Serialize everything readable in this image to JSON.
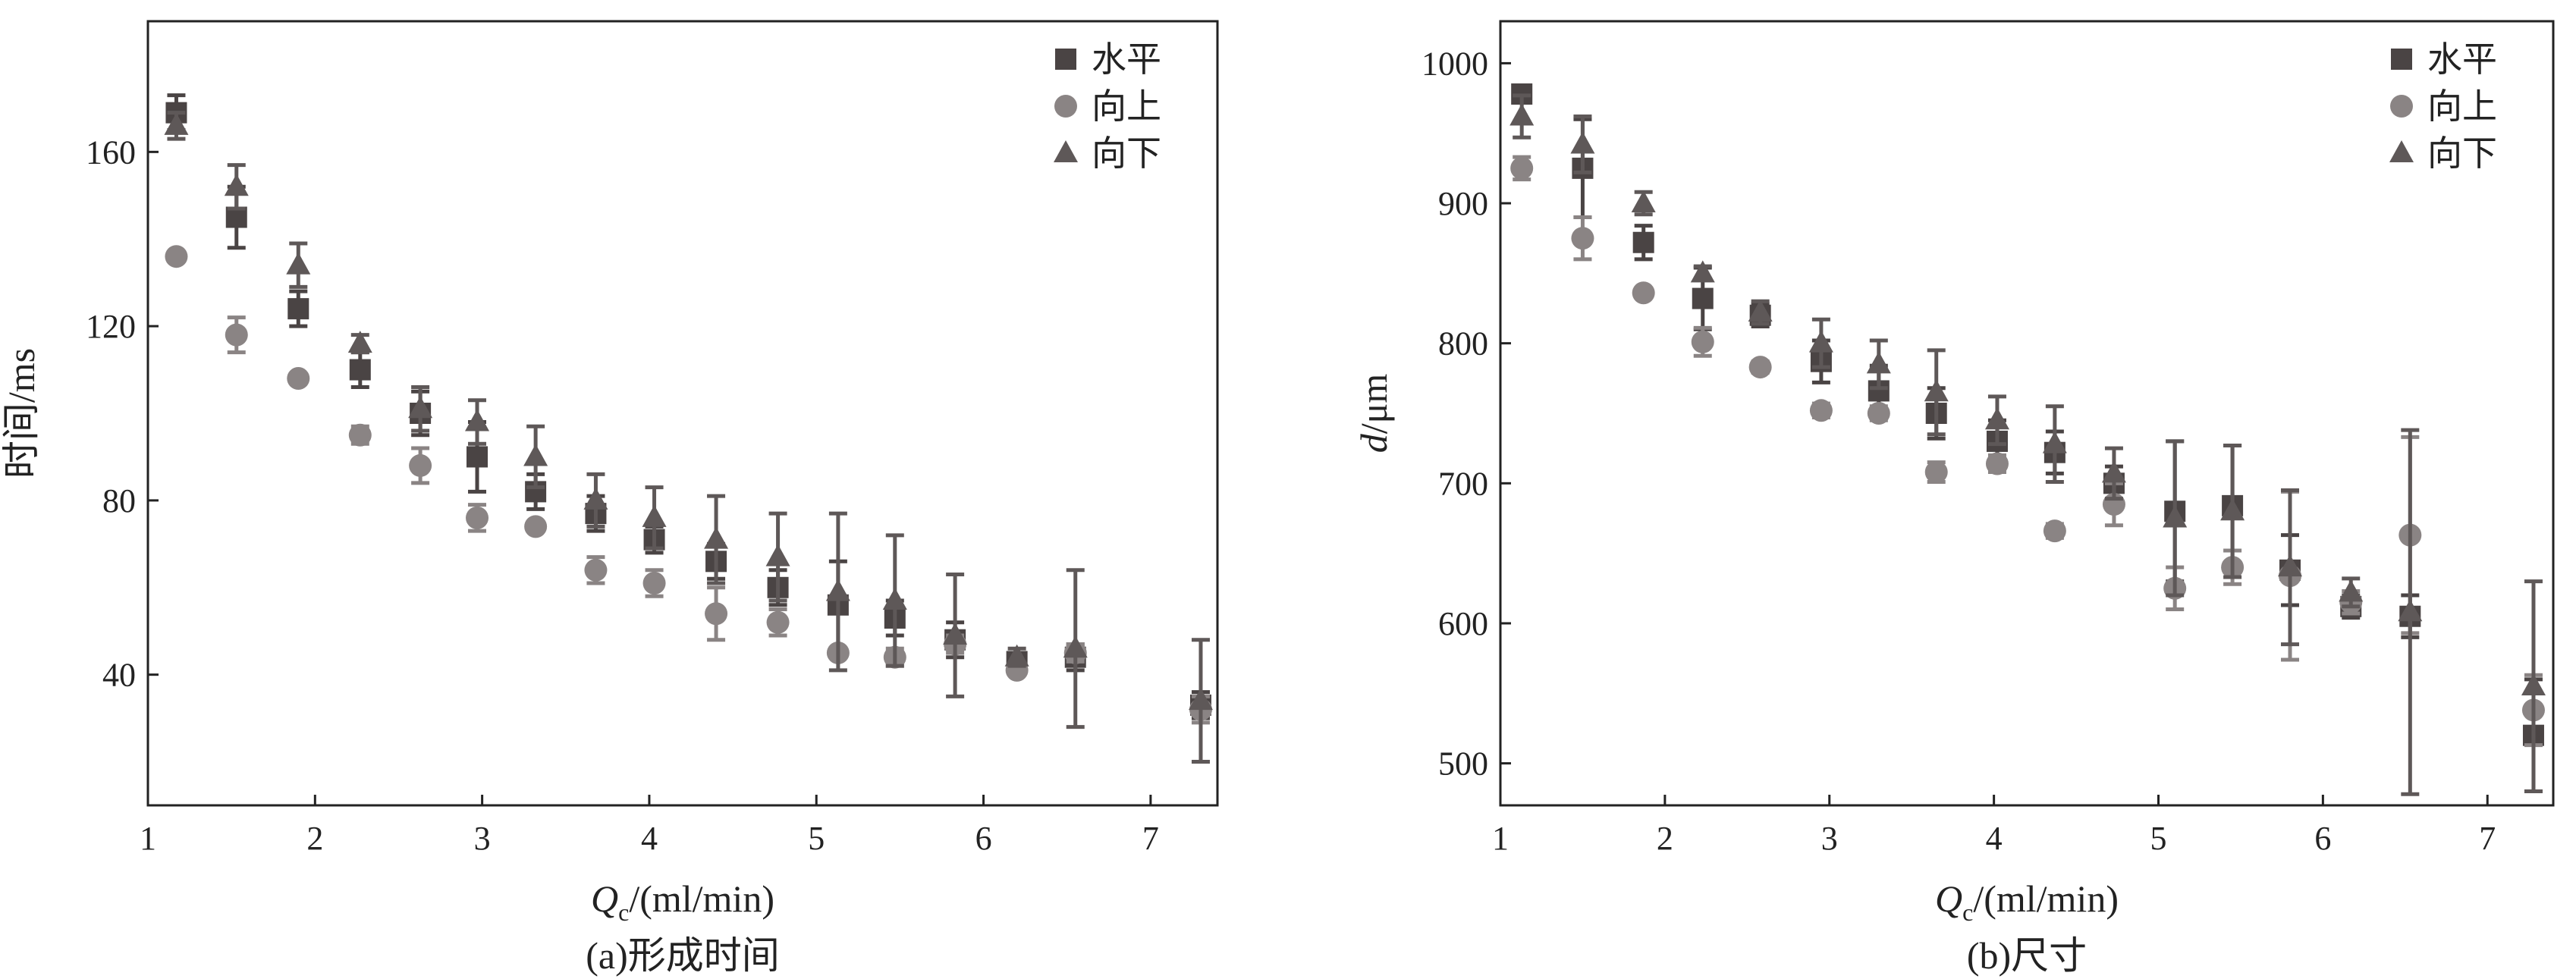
{
  "chart_data": [
    {
      "type": "scatter",
      "panel_id": "a",
      "caption": "(a)形成时间",
      "xlabel_symbol": "Q",
      "xlabel_subscript": "c",
      "xlabel_rest": "/(ml/min)",
      "ylabel": "时间/ms",
      "ylabel_italic": "",
      "ylabel_rest": "",
      "xlim": [
        1,
        7.4
      ],
      "ylim": [
        10,
        190
      ],
      "xticks": [
        1,
        2,
        3,
        4,
        5,
        6,
        7
      ],
      "yticks": [
        40,
        80,
        120,
        160
      ],
      "legend_position": "top-right",
      "series": [
        {
          "name": "水平",
          "marker": "square",
          "color": "#4a4444",
          "points": [
            {
              "x": 1.17,
              "y": 169,
              "err": 4
            },
            {
              "x": 1.53,
              "y": 145,
              "err": 7
            },
            {
              "x": 1.9,
              "y": 124,
              "err": 4
            },
            {
              "x": 2.27,
              "y": 110,
              "err": 4
            },
            {
              "x": 2.63,
              "y": 100,
              "err": 5
            },
            {
              "x": 2.97,
              "y": 90,
              "err": 8
            },
            {
              "x": 3.32,
              "y": 82,
              "err": 4
            },
            {
              "x": 3.68,
              "y": 77,
              "err": 4
            },
            {
              "x": 4.03,
              "y": 71,
              "err": 3
            },
            {
              "x": 4.4,
              "y": 66,
              "err": 4
            },
            {
              "x": 4.77,
              "y": 60,
              "err": 4
            },
            {
              "x": 5.13,
              "y": 56,
              "err": 10
            },
            {
              "x": 5.47,
              "y": 53,
              "err": 4
            },
            {
              "x": 5.83,
              "y": 48,
              "err": 4
            },
            {
              "x": 6.2,
              "y": 43,
              "err": 2
            },
            {
              "x": 6.55,
              "y": 44,
              "err": 3
            },
            {
              "x": 7.3,
              "y": 33,
              "err": 3
            }
          ]
        },
        {
          "name": "向上",
          "marker": "circle",
          "color": "#8a8484",
          "points": [
            {
              "x": 1.17,
              "y": 136,
              "err": 1
            },
            {
              "x": 1.53,
              "y": 118,
              "err": 4
            },
            {
              "x": 1.9,
              "y": 108,
              "err": 1
            },
            {
              "x": 2.27,
              "y": 95,
              "err": 2
            },
            {
              "x": 2.63,
              "y": 88,
              "err": 4
            },
            {
              "x": 2.97,
              "y": 76,
              "err": 3
            },
            {
              "x": 3.32,
              "y": 74,
              "err": 1
            },
            {
              "x": 3.68,
              "y": 64,
              "err": 3
            },
            {
              "x": 4.03,
              "y": 61,
              "err": 3
            },
            {
              "x": 4.4,
              "y": 54,
              "err": 6
            },
            {
              "x": 4.77,
              "y": 52,
              "err": 3
            },
            {
              "x": 5.13,
              "y": 45,
              "err": 1
            },
            {
              "x": 5.47,
              "y": 44,
              "err": 2
            },
            {
              "x": 5.83,
              "y": 47,
              "err": 2
            },
            {
              "x": 6.2,
              "y": 41,
              "err": 1
            },
            {
              "x": 6.55,
              "y": 45,
              "err": 2
            },
            {
              "x": 7.3,
              "y": 32,
              "err": 3
            }
          ]
        },
        {
          "name": "向下",
          "marker": "triangle",
          "color": "#5e5858",
          "points": [
            {
              "x": 1.17,
              "y": 166,
              "err": 3
            },
            {
              "x": 1.53,
              "y": 152,
              "err": 5
            },
            {
              "x": 1.9,
              "y": 134,
              "err": 5
            },
            {
              "x": 2.27,
              "y": 116,
              "err": 2
            },
            {
              "x": 2.63,
              "y": 101,
              "err": 5
            },
            {
              "x": 2.97,
              "y": 98,
              "err": 5
            },
            {
              "x": 3.32,
              "y": 90,
              "err": 7
            },
            {
              "x": 3.68,
              "y": 80,
              "err": 6
            },
            {
              "x": 4.03,
              "y": 76,
              "err": 7
            },
            {
              "x": 4.4,
              "y": 71,
              "err": 10
            },
            {
              "x": 4.77,
              "y": 67,
              "err": 10
            },
            {
              "x": 5.13,
              "y": 59,
              "err": 18
            },
            {
              "x": 5.47,
              "y": 57,
              "err": 15
            },
            {
              "x": 5.83,
              "y": 49,
              "err": 14
            },
            {
              "x": 6.2,
              "y": 44,
              "err": 2
            },
            {
              "x": 6.55,
              "y": 46,
              "err": 18
            },
            {
              "x": 7.3,
              "y": 34,
              "err": 14
            }
          ]
        }
      ]
    },
    {
      "type": "scatter",
      "panel_id": "b",
      "caption": "(b)尺寸",
      "xlabel_symbol": "Q",
      "xlabel_subscript": "c",
      "xlabel_rest": "/(ml/min)",
      "ylabel": "",
      "ylabel_italic": "d",
      "ylabel_rest": "/μm",
      "xlim": [
        1,
        7.4
      ],
      "ylim": [
        470,
        1030
      ],
      "xticks": [
        1,
        2,
        3,
        4,
        5,
        6,
        7
      ],
      "yticks": [
        500,
        600,
        700,
        800,
        900,
        1000
      ],
      "legend_position": "top-right",
      "series": [
        {
          "name": "水平",
          "marker": "square",
          "color": "#4a4444",
          "points": [
            {
              "x": 1.13,
              "y": 978,
              "err": 3
            },
            {
              "x": 1.5,
              "y": 925,
              "err": 35
            },
            {
              "x": 1.87,
              "y": 872,
              "err": 12
            },
            {
              "x": 2.23,
              "y": 832,
              "err": 22
            },
            {
              "x": 2.58,
              "y": 820,
              "err": 8
            },
            {
              "x": 2.95,
              "y": 787,
              "err": 15
            },
            {
              "x": 3.3,
              "y": 766,
              "err": 18
            },
            {
              "x": 3.65,
              "y": 750,
              "err": 18
            },
            {
              "x": 4.02,
              "y": 730,
              "err": 15
            },
            {
              "x": 4.37,
              "y": 722,
              "err": 15
            },
            {
              "x": 4.73,
              "y": 700,
              "err": 12
            },
            {
              "x": 5.1,
              "y": 680,
              "err": 50
            },
            {
              "x": 5.45,
              "y": 684,
              "err": 43
            },
            {
              "x": 5.8,
              "y": 638,
              "err": 25
            },
            {
              "x": 6.17,
              "y": 612,
              "err": 8
            },
            {
              "x": 6.53,
              "y": 605,
              "err": 15
            },
            {
              "x": 7.28,
              "y": 520,
              "err": 40
            }
          ]
        },
        {
          "name": "向上",
          "marker": "circle",
          "color": "#8a8484",
          "points": [
            {
              "x": 1.13,
              "y": 925,
              "err": 8
            },
            {
              "x": 1.5,
              "y": 875,
              "err": 15
            },
            {
              "x": 1.87,
              "y": 836,
              "err": 3
            },
            {
              "x": 2.23,
              "y": 801,
              "err": 10
            },
            {
              "x": 2.58,
              "y": 783,
              "err": 4
            },
            {
              "x": 2.95,
              "y": 752,
              "err": 5
            },
            {
              "x": 3.3,
              "y": 750,
              "err": 5
            },
            {
              "x": 3.65,
              "y": 708,
              "err": 7
            },
            {
              "x": 4.02,
              "y": 714,
              "err": 6
            },
            {
              "x": 4.37,
              "y": 666,
              "err": 5
            },
            {
              "x": 4.73,
              "y": 685,
              "err": 15
            },
            {
              "x": 5.1,
              "y": 625,
              "err": 15
            },
            {
              "x": 5.45,
              "y": 640,
              "err": 12
            },
            {
              "x": 5.8,
              "y": 634,
              "err": 60
            },
            {
              "x": 6.17,
              "y": 615,
              "err": 8
            },
            {
              "x": 6.53,
              "y": 663,
              "err": 70
            },
            {
              "x": 7.28,
              "y": 538,
              "err": 25
            }
          ]
        },
        {
          "name": "向下",
          "marker": "triangle",
          "color": "#5e5858",
          "points": [
            {
              "x": 1.13,
              "y": 962,
              "err": 15
            },
            {
              "x": 1.5,
              "y": 942,
              "err": 20
            },
            {
              "x": 1.87,
              "y": 900,
              "err": 8
            },
            {
              "x": 2.23,
              "y": 850,
              "err": 5
            },
            {
              "x": 2.58,
              "y": 822,
              "err": 8
            },
            {
              "x": 2.95,
              "y": 800,
              "err": 17
            },
            {
              "x": 3.3,
              "y": 785,
              "err": 17
            },
            {
              "x": 3.65,
              "y": 765,
              "err": 30
            },
            {
              "x": 4.02,
              "y": 745,
              "err": 17
            },
            {
              "x": 4.37,
              "y": 728,
              "err": 27
            },
            {
              "x": 4.73,
              "y": 707,
              "err": 18
            },
            {
              "x": 5.1,
              "y": 675,
              "err": 55
            },
            {
              "x": 5.45,
              "y": 680,
              "err": 47
            },
            {
              "x": 5.8,
              "y": 640,
              "err": 55
            },
            {
              "x": 6.17,
              "y": 622,
              "err": 10
            },
            {
              "x": 6.53,
              "y": 608,
              "err": 130
            },
            {
              "x": 7.28,
              "y": 555,
              "err": 75
            }
          ]
        }
      ]
    }
  ]
}
